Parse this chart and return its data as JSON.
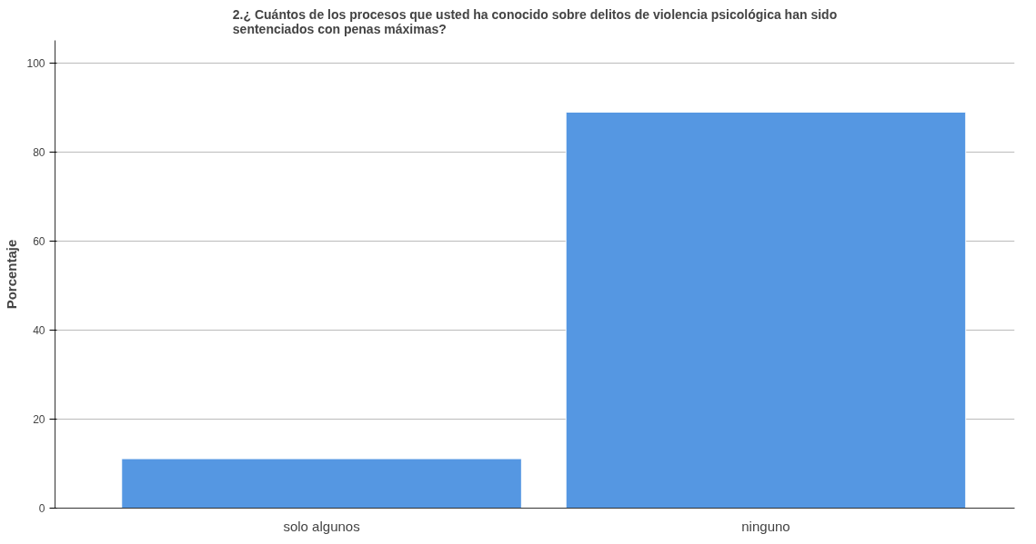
{
  "chart_data": {
    "type": "bar",
    "title": "2.¿ Cuántos de los procesos que usted ha conocido sobre delitos de violencia psicológica han sido sentenciados con penas máximas?",
    "ylabel": "Porcentaje",
    "categories": [
      "solo algunos",
      "ninguno"
    ],
    "values": [
      11.1,
      88.9
    ],
    "color": "#5597e2",
    "ylim": [
      0,
      105
    ],
    "yticks": [
      0,
      20,
      40,
      60,
      80,
      100
    ],
    "grid": "y"
  }
}
